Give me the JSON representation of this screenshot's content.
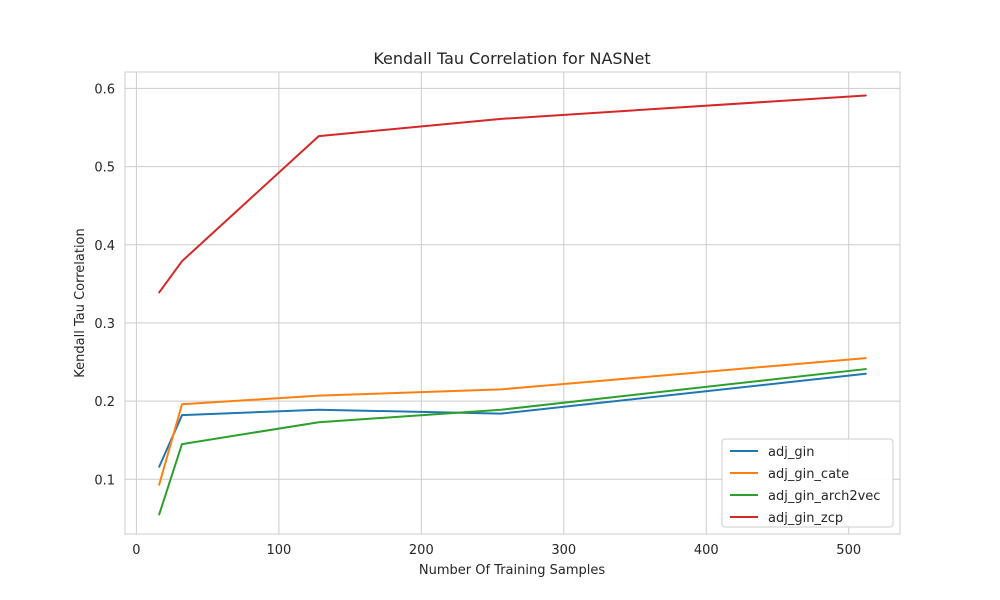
{
  "chart_data": {
    "type": "line",
    "title": "Kendall Tau Correlation for NASNet",
    "xlabel": "Number Of Training Samples",
    "ylabel": "Kendall Tau Correlation",
    "xlim": [
      -8,
      536
    ],
    "ylim": [
      0.03,
      0.621
    ],
    "xticks": [
      0,
      100,
      200,
      300,
      400,
      500
    ],
    "yticks": [
      0.1,
      0.2,
      0.3,
      0.4,
      0.5,
      0.6
    ],
    "ytick_labels": [
      "0.1",
      "0.2",
      "0.3",
      "0.4",
      "0.5",
      "0.6"
    ],
    "grid": true,
    "legend_position": "lower-right",
    "x": [
      16,
      32,
      128,
      256,
      512
    ],
    "series": [
      {
        "name": "adj_gin",
        "color": "#1f77b4",
        "values": [
          0.116,
          0.182,
          0.189,
          0.184,
          0.235
        ]
      },
      {
        "name": "adj_gin_cate",
        "color": "#ff7f0e",
        "values": [
          0.093,
          0.196,
          0.207,
          0.215,
          0.255
        ]
      },
      {
        "name": "adj_gin_arch2vec",
        "color": "#2ca02c",
        "values": [
          0.055,
          0.145,
          0.173,
          0.189,
          0.241
        ]
      },
      {
        "name": "adj_gin_zcp",
        "color": "#d62728",
        "values": [
          0.339,
          0.379,
          0.539,
          0.561,
          0.591
        ]
      }
    ]
  }
}
